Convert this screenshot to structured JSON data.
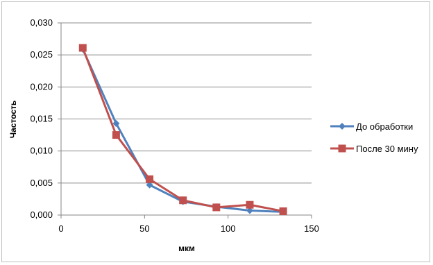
{
  "chart_data": {
    "type": "line",
    "title": "",
    "xlabel": "мкм",
    "ylabel": "Частость",
    "xlim": [
      0,
      150
    ],
    "ylim": [
      0,
      0.03
    ],
    "x_ticks": [
      "0",
      "50",
      "100",
      "150"
    ],
    "y_ticks": [
      "0,000",
      "0,005",
      "0,010",
      "0,015",
      "0,020",
      "0,025",
      "0,030"
    ],
    "grid": "horizontal",
    "legend_position": "right",
    "series": [
      {
        "name": "До обработки",
        "color": "#4f81bd",
        "marker": "diamond",
        "x": [
          13,
          33,
          53,
          73,
          93,
          113,
          133
        ],
        "y": [
          0.0259,
          0.0143,
          0.0047,
          0.0021,
          0.0013,
          0.0007,
          0.0005
        ]
      },
      {
        "name": "После 30 мину",
        "color": "#c0504d",
        "marker": "square",
        "x": [
          13,
          33,
          53,
          73,
          93,
          113,
          133
        ],
        "y": [
          0.0261,
          0.0125,
          0.0056,
          0.0023,
          0.0012,
          0.0016,
          0.0006
        ]
      }
    ]
  }
}
